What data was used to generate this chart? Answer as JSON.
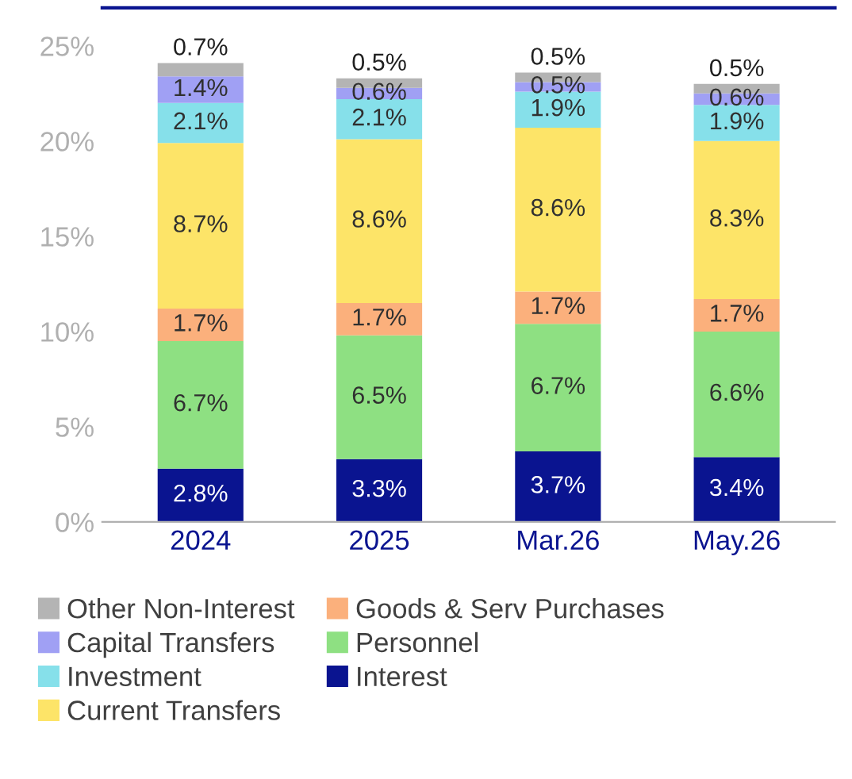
{
  "chart_data": {
    "type": "bar",
    "stacked": true,
    "categories": [
      "2024",
      "2025",
      "Mar.26",
      "May.26"
    ],
    "ylim": [
      0,
      27
    ],
    "yticks": [
      {
        "value": 0,
        "label": "0%"
      },
      {
        "value": 5,
        "label": "5%"
      },
      {
        "value": 10,
        "label": "10%"
      },
      {
        "value": 15,
        "label": "15%"
      },
      {
        "value": 20,
        "label": "20%"
      },
      {
        "value": 25,
        "label": "25%"
      }
    ],
    "grid": false,
    "legend": "bottom",
    "series": [
      {
        "name": "Interest",
        "color": "#0a1490",
        "values": [
          2.8,
          3.3,
          3.7,
          3.4
        ],
        "value_labels": [
          "2.8%",
          "3.3%",
          "3.7%",
          "3.4%"
        ]
      },
      {
        "name": "Personnel",
        "color": "#8ee082",
        "values": [
          6.7,
          6.5,
          6.7,
          6.6
        ],
        "value_labels": [
          "6.7%",
          "6.5%",
          "6.7%",
          "6.6%"
        ]
      },
      {
        "name": "Goods & Serv Purchases",
        "color": "#fbb07c",
        "values": [
          1.7,
          1.7,
          1.7,
          1.7
        ],
        "value_labels": [
          "1.7%",
          "1.7%",
          "1.7%",
          "1.7%"
        ]
      },
      {
        "name": "Current Transfers",
        "color": "#fde468",
        "values": [
          8.7,
          8.6,
          8.6,
          8.3
        ],
        "value_labels": [
          "8.7%",
          "8.6%",
          "8.6%",
          "8.3%"
        ]
      },
      {
        "name": "Investment",
        "color": "#86e0ea",
        "values": [
          2.1,
          2.1,
          1.9,
          1.9
        ],
        "value_labels": [
          "2.1%",
          "2.1%",
          "1.9%",
          "1.9%"
        ]
      },
      {
        "name": "Capital Transfers",
        "color": "#a0a0f4",
        "values": [
          1.4,
          0.6,
          0.5,
          0.6
        ],
        "value_labels": [
          "1.4%",
          "0.6%",
          "0.5%",
          "0.6%"
        ]
      },
      {
        "name": "Other Non-Interest",
        "color": "#b4b4b4",
        "values": [
          0.7,
          0.5,
          0.5,
          0.5
        ],
        "value_labels": [
          "0.7%",
          "0.5%",
          "0.5%",
          "0.5%"
        ]
      }
    ]
  }
}
